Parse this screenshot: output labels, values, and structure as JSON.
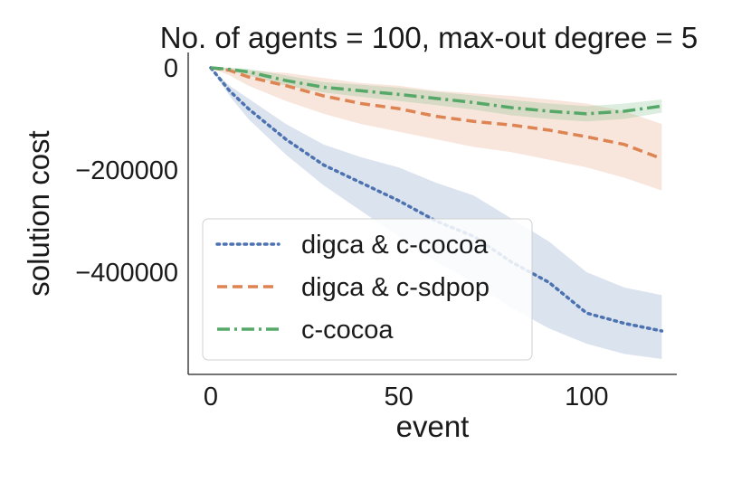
{
  "chart_data": {
    "type": "line",
    "title": "No. of agents = 100, max-out degree = 5",
    "xlabel": "event",
    "ylabel": "solution cost",
    "xlim": [
      -6,
      124
    ],
    "ylim": [
      -600000,
      30000
    ],
    "xticks": [
      0,
      50,
      100
    ],
    "xtick_labels": [
      "0",
      "50",
      "100"
    ],
    "yticks": [
      0,
      -200000,
      -400000
    ],
    "ytick_labels": [
      "0",
      "−200000",
      "−400000"
    ],
    "grid": false,
    "legend_position": "lower-left",
    "series": [
      {
        "name": "digca & c-cocoa",
        "color": "#4c72b0",
        "style": "dotted",
        "x": [
          0,
          5,
          10,
          20,
          30,
          40,
          50,
          60,
          70,
          80,
          90,
          100,
          110,
          120
        ],
        "y": [
          0,
          -45000,
          -80000,
          -140000,
          -190000,
          -225000,
          -260000,
          -300000,
          -330000,
          -380000,
          -420000,
          -480000,
          -500000,
          -515000
        ],
        "lower": [
          0,
          -55000,
          -100000,
          -170000,
          -230000,
          -280000,
          -330000,
          -380000,
          -420000,
          -470000,
          -510000,
          -540000,
          -560000,
          -570000
        ],
        "upper": [
          0,
          -35000,
          -60000,
          -110000,
          -150000,
          -175000,
          -195000,
          -225000,
          -250000,
          -295000,
          -340000,
          -400000,
          -430000,
          -445000
        ]
      },
      {
        "name": "digca & c-sdpop",
        "color": "#dd8452",
        "style": "dashed",
        "x": [
          0,
          5,
          10,
          20,
          30,
          40,
          50,
          60,
          70,
          80,
          90,
          100,
          110,
          120
        ],
        "y": [
          0,
          -5000,
          -18000,
          -35000,
          -55000,
          -70000,
          -80000,
          -95000,
          -105000,
          -112000,
          -122000,
          -135000,
          -150000,
          -178000
        ],
        "lower": [
          0,
          -15000,
          -35000,
          -65000,
          -90000,
          -110000,
          -125000,
          -140000,
          -155000,
          -165000,
          -180000,
          -195000,
          -215000,
          -240000
        ],
        "upper": [
          0,
          0,
          -5000,
          -10000,
          -20000,
          -30000,
          -35000,
          -45000,
          -50000,
          -55000,
          -62000,
          -70000,
          -85000,
          -110000
        ]
      },
      {
        "name": "c-cocoa",
        "color": "#55a868",
        "style": "dashdot",
        "x": [
          0,
          5,
          10,
          20,
          30,
          40,
          50,
          60,
          70,
          80,
          90,
          100,
          110,
          120
        ],
        "y": [
          0,
          -3000,
          -8000,
          -25000,
          -38000,
          -45000,
          -52000,
          -60000,
          -68000,
          -78000,
          -85000,
          -90000,
          -85000,
          -75000
        ],
        "lower": [
          0,
          -6000,
          -15000,
          -35000,
          -48000,
          -57000,
          -65000,
          -73000,
          -82000,
          -93000,
          -100000,
          -105000,
          -100000,
          -88000
        ],
        "upper": [
          0,
          0,
          -2000,
          -15000,
          -28000,
          -33000,
          -39000,
          -47000,
          -54000,
          -63000,
          -70000,
          -75000,
          -70000,
          -62000
        ]
      }
    ]
  }
}
